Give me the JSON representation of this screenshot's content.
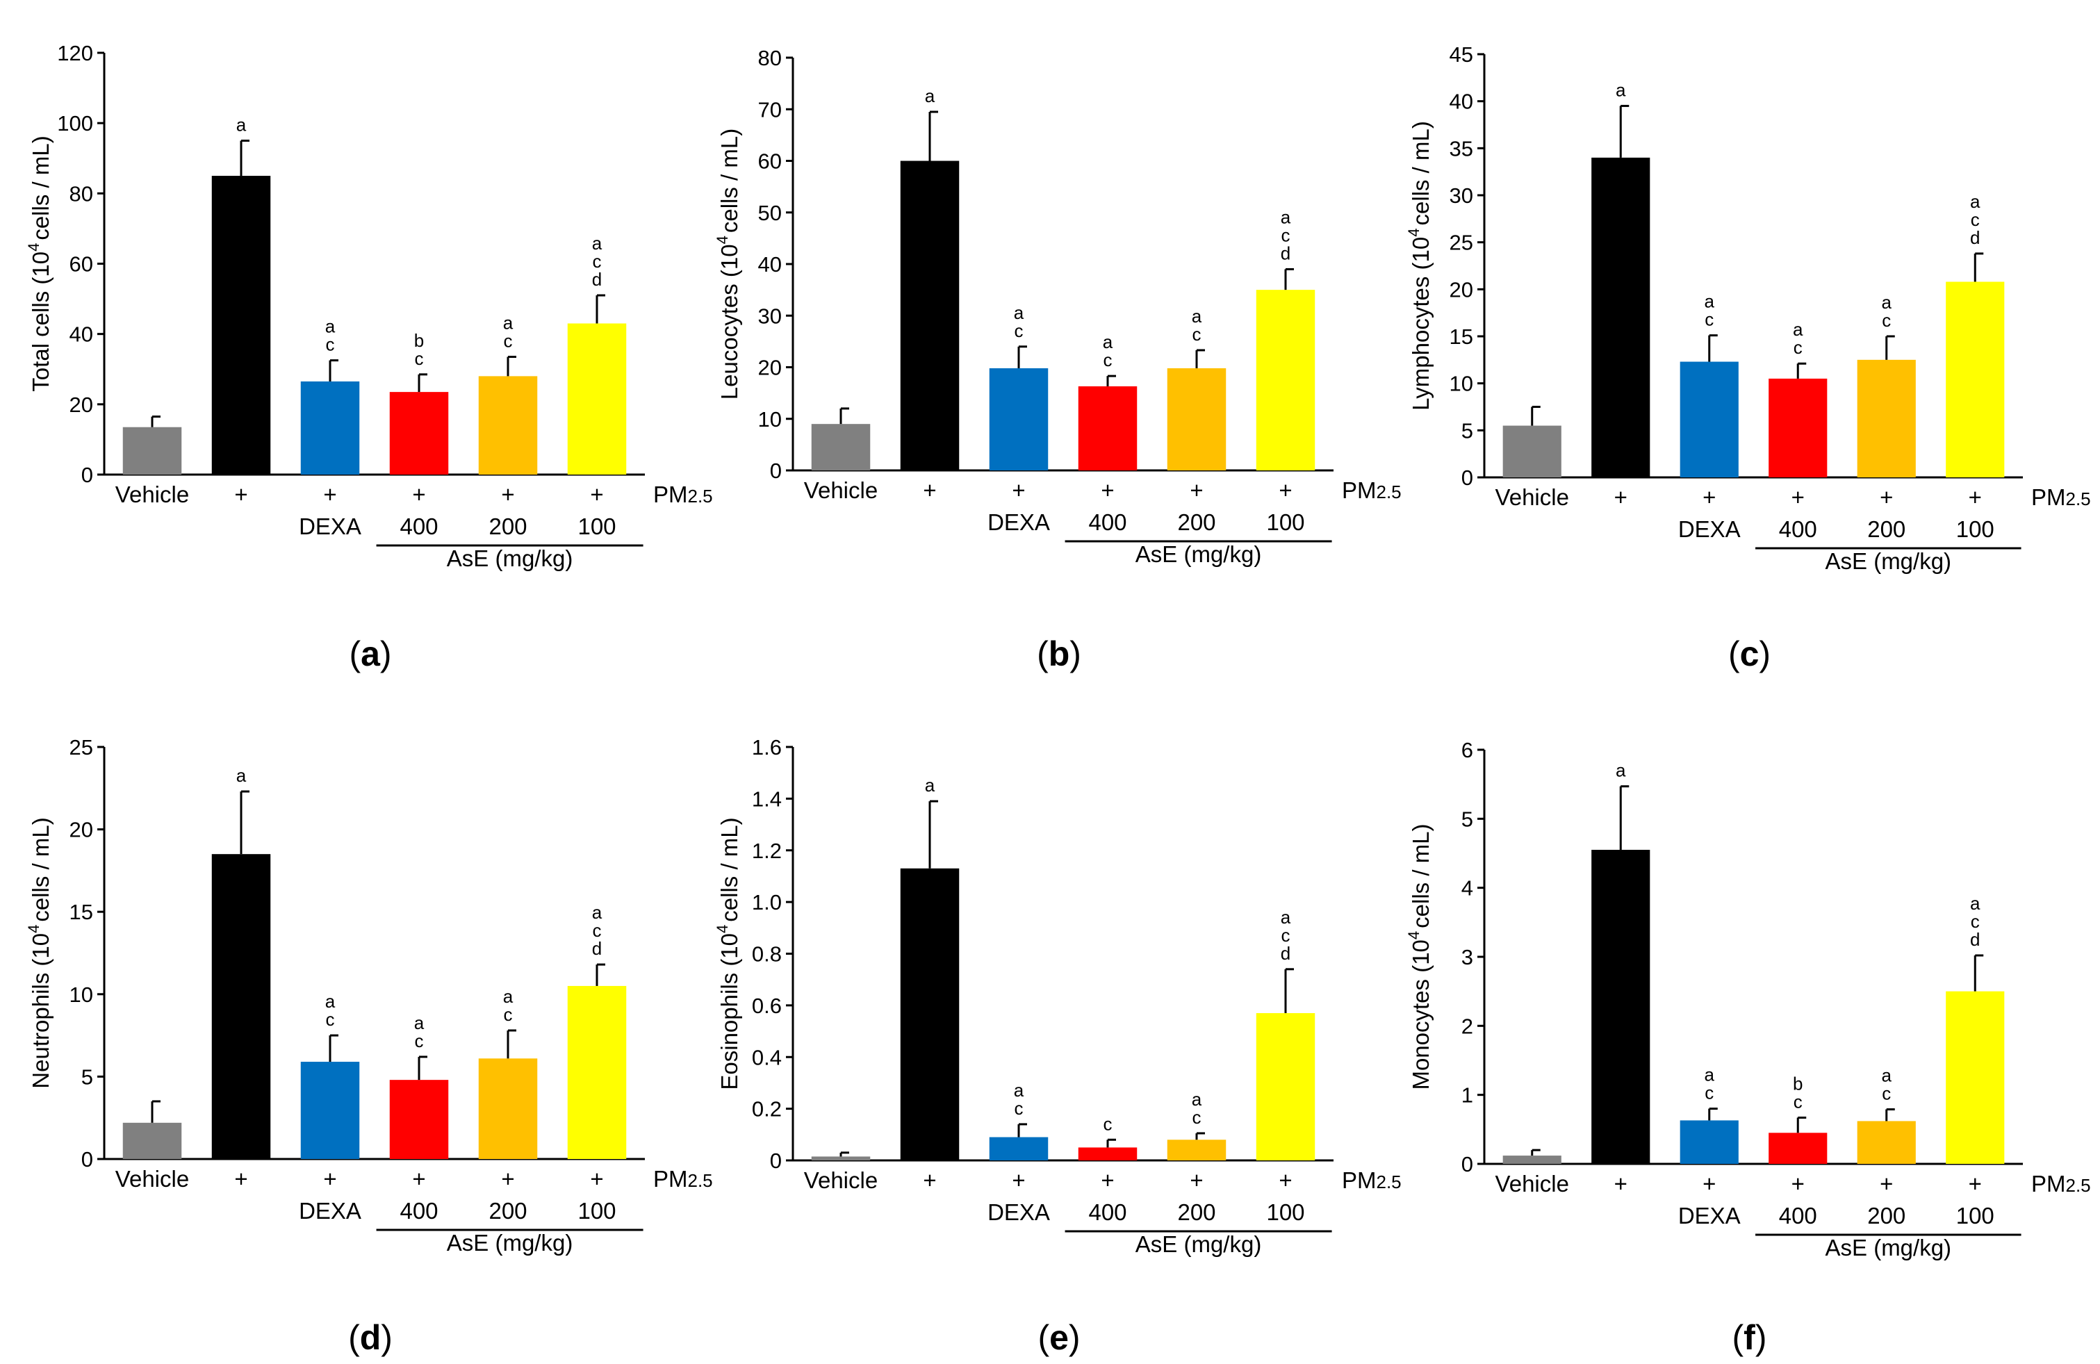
{
  "figure": {
    "x_group_labels": {
      "vehicle": "Vehicle",
      "plus": "+",
      "dexa": "DEXA",
      "doses": [
        "400",
        "200",
        "100"
      ],
      "treatment": "AsE (mg/kg)",
      "pm_base": "PM",
      "pm_sub": "2.5"
    },
    "bar_colors": [
      "#808080",
      "#000000",
      "#0070C0",
      "#FF0000",
      "#FFC000",
      "#FFFF00"
    ]
  },
  "chart_data": [
    {
      "type": "bar",
      "panel": "a",
      "ylabel": "Total cells (10",
      "ylabel_sup": "4",
      "ylabel_tail": "cells / mL)",
      "ylim": [
        0,
        120
      ],
      "yticks": [
        "0",
        "20",
        "40",
        "60",
        "80",
        "100",
        "120"
      ],
      "categories": [
        "Vehicle",
        "PM2.5",
        "DEXA",
        "AsE 400",
        "AsE 200",
        "AsE 100"
      ],
      "values": [
        13.5,
        85,
        26.5,
        23.5,
        28,
        43
      ],
      "errors": [
        3,
        10,
        6,
        5,
        5.5,
        8
      ],
      "letters": [
        [],
        [
          "a"
        ],
        [
          "a",
          "c"
        ],
        [
          "b",
          "c"
        ],
        [
          "a",
          "c"
        ],
        [
          "a",
          "c",
          "d"
        ]
      ]
    },
    {
      "type": "bar",
      "panel": "b",
      "ylabel": "Leucocytes (10",
      "ylabel_sup": "4",
      "ylabel_tail": "cells / mL)",
      "ylim": [
        0,
        80
      ],
      "yticks": [
        "0",
        "10",
        "20",
        "30",
        "40",
        "50",
        "60",
        "70",
        "80"
      ],
      "categories": [
        "Vehicle",
        "PM2.5",
        "DEXA",
        "AsE 400",
        "AsE 200",
        "AsE 100"
      ],
      "values": [
        9,
        60,
        19.8,
        16.3,
        19.8,
        35
      ],
      "errors": [
        3,
        9.5,
        4.2,
        2,
        3.5,
        4
      ],
      "letters": [
        [],
        [
          "a"
        ],
        [
          "a",
          "c"
        ],
        [
          "a",
          "c"
        ],
        [
          "a",
          "c"
        ],
        [
          "a",
          "c",
          "d"
        ]
      ]
    },
    {
      "type": "bar",
      "panel": "c",
      "ylabel": "Lymphocytes (10",
      "ylabel_sup": "4",
      "ylabel_tail": "cells / mL)",
      "ylim": [
        0,
        45
      ],
      "yticks": [
        "0",
        "5",
        "10",
        "15",
        "20",
        "25",
        "30",
        "35",
        "40",
        "45"
      ],
      "categories": [
        "Vehicle",
        "PM2.5",
        "DEXA",
        "AsE 400",
        "AsE 200",
        "AsE 100"
      ],
      "values": [
        5.5,
        34,
        12.3,
        10.5,
        12.5,
        20.8
      ],
      "errors": [
        2,
        5.5,
        2.8,
        1.6,
        2.5,
        3
      ],
      "letters": [
        [],
        [
          "a"
        ],
        [
          "a",
          "c"
        ],
        [
          "a",
          "c"
        ],
        [
          "a",
          "c"
        ],
        [
          "a",
          "c",
          "d"
        ]
      ]
    },
    {
      "type": "bar",
      "panel": "d",
      "ylabel": "Neutrophils (10",
      "ylabel_sup": "4",
      "ylabel_tail": "cells / mL)",
      "ylim": [
        0,
        25
      ],
      "yticks": [
        "0",
        "5",
        "10",
        "15",
        "20",
        "25"
      ],
      "categories": [
        "Vehicle",
        "PM2.5",
        "DEXA",
        "AsE 400",
        "AsE 200",
        "AsE 100"
      ],
      "values": [
        2.2,
        18.5,
        5.9,
        4.8,
        6.1,
        10.5
      ],
      "errors": [
        1.3,
        3.8,
        1.6,
        1.4,
        1.7,
        1.3
      ],
      "letters": [
        [],
        [
          "a"
        ],
        [
          "a",
          "c"
        ],
        [
          "a",
          "c"
        ],
        [
          "a",
          "c"
        ],
        [
          "a",
          "c",
          "d"
        ]
      ]
    },
    {
      "type": "bar",
      "panel": "e",
      "ylabel": "Eosinophils (10",
      "ylabel_sup": "4",
      "ylabel_tail": "cells / mL)",
      "ylim": [
        0,
        1.6
      ],
      "yticks": [
        "0",
        "0.2",
        "0.4",
        "0.6",
        "0.8",
        "1.0",
        "1.2",
        "1.4",
        "1.6"
      ],
      "categories": [
        "Vehicle",
        "PM2.5",
        "DEXA",
        "AsE 400",
        "AsE 200",
        "AsE 100"
      ],
      "values": [
        0.015,
        1.13,
        0.09,
        0.05,
        0.08,
        0.57
      ],
      "errors": [
        0.015,
        0.26,
        0.05,
        0.03,
        0.025,
        0.17
      ],
      "letters": [
        [],
        [
          "a"
        ],
        [
          "a",
          "c"
        ],
        [
          "c"
        ],
        [
          "a",
          "c"
        ],
        [
          "a",
          "c",
          "d"
        ]
      ]
    },
    {
      "type": "bar",
      "panel": "f",
      "ylabel": "Monocytes (10",
      "ylabel_sup": "4",
      "ylabel_tail": "cells / mL)",
      "ylim": [
        0,
        6
      ],
      "yticks": [
        "0",
        "1",
        "2",
        "3",
        "4",
        "5",
        "6"
      ],
      "categories": [
        "Vehicle",
        "PM2.5",
        "DEXA",
        "AsE 400",
        "AsE 200",
        "AsE 100"
      ],
      "values": [
        0.12,
        4.55,
        0.63,
        0.45,
        0.62,
        2.5
      ],
      "errors": [
        0.08,
        0.92,
        0.17,
        0.22,
        0.17,
        0.52
      ],
      "letters": [
        [],
        [
          "a"
        ],
        [
          "a",
          "c"
        ],
        [
          "b",
          "c"
        ],
        [
          "a",
          "c"
        ],
        [
          "a",
          "c",
          "d"
        ]
      ]
    }
  ]
}
